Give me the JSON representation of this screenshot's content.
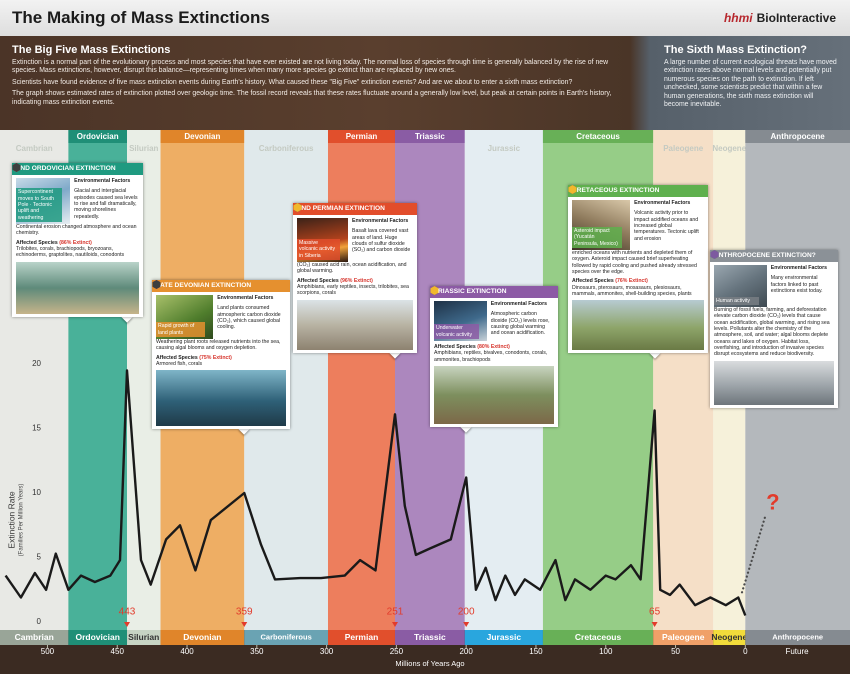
{
  "chart_data": {
    "type": "line",
    "title": "The Making of Mass Extinctions",
    "brand_hhmi": "hhmi",
    "brand_name": "BioInteractive",
    "intro": {
      "heading": "The Big Five Mass Extinctions",
      "paragraphs": [
        "Extinction is a normal part of the evolutionary process and most species that have ever existed are not living today. The normal loss of species through time is generally balanced by the rise of new species. Mass extinctions, however, disrupt this balance—representing times when many more species go extinct than are replaced by new ones.",
        "Scientists have found evidence of five mass extinction events during Earth's history. What caused these \"Big Five\" extinction events? And are we about to enter a sixth mass extinction?",
        "The graph shows estimated rates of extinction plotted over geologic time. The fossil record reveals that these rates fluctuate around a generally low level, but peak at certain points in Earth's history, indicating mass extinction events."
      ]
    },
    "sixth": {
      "heading": "The Sixth Mass Extinction?",
      "text": "A large number of current ecological threats have moved extinction rates above normal levels and potentially put numerous species on the path to extinction. If left unchecked, some scientists predict that within a few human generations, the sixth mass extinction will become inevitable."
    },
    "y_label": "Extinction Rate",
    "y_sublabel": "(Families Per Million Years)",
    "x_label": "Millions of Years Ago",
    "future_label": "Future",
    "xlim": [
      534,
      -75
    ],
    "ylim": [
      0,
      20
    ],
    "xticks": [
      500,
      450,
      400,
      350,
      300,
      250,
      200,
      150,
      100,
      50,
      0
    ],
    "yticks": [
      0,
      5,
      10,
      15,
      20
    ],
    "grid": false,
    "line_color": "#1a1a1a",
    "x": [
      530,
      519,
      509,
      501,
      494,
      485,
      476,
      466,
      455,
      448,
      443,
      433,
      426,
      415,
      405,
      394,
      383,
      359,
      347,
      337,
      319,
      304,
      287,
      276,
      265,
      251,
      244,
      236,
      226,
      211,
      200,
      193,
      186,
      179,
      172,
      165,
      158,
      147,
      136,
      129,
      122,
      111,
      100,
      93,
      82,
      75,
      65,
      61,
      54,
      47,
      36,
      25,
      14,
      5,
      0
    ],
    "values": [
      3.6,
      1.9,
      3.8,
      2.5,
      5.3,
      2.5,
      3.6,
      3.1,
      3.6,
      4.8,
      19.5,
      4.8,
      2.9,
      6.4,
      7.5,
      4.0,
      7.9,
      10,
      6,
      3.3,
      3.4,
      3.4,
      3.6,
      4.8,
      4.0,
      16.1,
      9,
      5.2,
      5.7,
      6.4,
      11.2,
      2.5,
      4.2,
      1.7,
      3.6,
      2.1,
      3.3,
      2.5,
      4.8,
      1.7,
      3.3,
      2.5,
      3.6,
      3.3,
      4.4,
      3.3,
      16.4,
      2.5,
      2.1,
      2.9,
      1.3,
      1.9,
      1.3,
      1.9,
      0.5
    ],
    "projection": {
      "color": "#4a4a4a",
      "x": [
        2.4,
        -14
      ],
      "values": [
        2.3,
        8.1
      ],
      "mark": "?",
      "mark_color": "#e23b2b"
    },
    "extinction_markers": [
      443,
      359,
      251,
      200,
      65
    ],
    "marker_color": "#e23b2b",
    "periods": [
      {
        "name": "Cambrian",
        "start": 541,
        "end": 485,
        "color": "#e6e8e3",
        "strip_color": "#99a598"
      },
      {
        "name": "Ordovician",
        "start": 485,
        "end": 443,
        "color": "#2ba68a",
        "strip_color": "#1f8f77"
      },
      {
        "name": "Silurian",
        "start": 443,
        "end": 419,
        "color": "#e7ede4",
        "strip_color": "#c6d3c3"
      },
      {
        "name": "Devonian",
        "start": 419,
        "end": 359,
        "color": "#eda24b",
        "strip_color": "#e0852a"
      },
      {
        "name": "Carboniferous",
        "start": 359,
        "end": 299,
        "color": "#dde7ea",
        "strip_color": "#6aa3b3"
      },
      {
        "name": "Permian",
        "start": 299,
        "end": 251,
        "color": "#ec6a43",
        "strip_color": "#e14f2c"
      },
      {
        "name": "Triassic",
        "start": 251,
        "end": 201,
        "color": "#a074b5",
        "strip_color": "#8a5ca4"
      },
      {
        "name": "Jurassic",
        "start": 201,
        "end": 145,
        "color": "#e2ecf2",
        "strip_color": "#29a6de"
      },
      {
        "name": "Cretaceous",
        "start": 145,
        "end": 66,
        "color": "#86c774",
        "strip_color": "#68b057"
      },
      {
        "name": "Paleogene",
        "start": 66,
        "end": 23,
        "color": "#f6dcc0",
        "strip_color": "#f0a068"
      },
      {
        "name": "Neogene",
        "start": 23,
        "end": 0,
        "color": "#f7f1d6",
        "strip_color": "#f2dc3b"
      },
      {
        "name": "Anthropocene",
        "start": 0,
        "end": -75,
        "color": "#a9aeb3",
        "strip_color": "#858b91"
      }
    ],
    "environmental_label": "Environmental Factors",
    "events": [
      {
        "title": "END ORDOVICIAN EXTINCTION",
        "color": "#1f9a80",
        "caption": "Supercontinent moves to South Pole · Tectonic uplift and weathering",
        "factors": "Glacial and interglacial episodes caused sea levels to rise and fall dramatically, moving shorelines repeatedly.",
        "factors_more": "Continental erosion changed atmosphere and ocean chemistry.",
        "affected": "Affected Species",
        "extinct": "(86% Extinct)",
        "species": "Trilobites, corals, brachiopods, bryozoans, echinoderms, graptolites, nautiloids, conodonts"
      },
      {
        "title": "LATE DEVONIAN EXTINCTION",
        "color": "#e5902f",
        "caption": "Rapid growth of land plants",
        "factors": "Land plants consumed atmospheric carbon dioxide (CO₂), which caused global cooling.",
        "factors_more": "Weathering plant roots released nutrients into the sea, causing algal blooms and oxygen depletion.",
        "affected": "Affected Species",
        "extinct": "(75% Extinct)",
        "species": "Armored fish, corals"
      },
      {
        "title": "END PERMIAN EXTINCTION",
        "color": "#e24d2b",
        "caption": "Massive volcanic activity in Siberia",
        "factors": "Basalt lava covered vast areas of land. Huge clouds of sulfur dioxide (SO₂) and carbon dioxide",
        "factors_more": "(CO₂) caused acid rain, ocean acidification, and global warming.",
        "affected": "Affected Species",
        "extinct": "(96% Extinct)",
        "species": "Amphibians, early reptiles, insects, trilobites, sea scorpions, corals"
      },
      {
        "title": "TRIASSIC EXTINCTION",
        "color": "#8c5aa5",
        "caption": "Underwater volcanic activity",
        "factors": "Atmospheric carbon dioxide (CO₂) levels rose, causing global warming and ocean acidification.",
        "affected": "Affected Species",
        "extinct": "(80% Extinct)",
        "species": "Amphibians, reptiles, bivalves, conodonts, corals, ammonites, brachiopods"
      },
      {
        "title": "CRETACEOUS EXTINCTION",
        "color": "#5fb04e",
        "caption": "Asteroid impact (Yucatán Peninsula, Mexico)",
        "factors": "Volcanic activity prior to impact acidified oceans and increased global temperatures. Tectonic uplift and erosion",
        "factors_more": "enriched oceans with nutrients and depleted them of oxygen. Asteroid impact caused brief superheating followed by rapid cooling and pushed already stressed species over the edge.",
        "affected": "Affected Species",
        "extinct": "(76% Extinct)",
        "species": "Dinosaurs, pterosaurs, mosasaurs, plesiosaurs, mammals, ammonites, shell-building species, plants"
      },
      {
        "title": "ANTHROPOCENE EXTINCTION?",
        "color": "#8b9197",
        "caption": "Human activity",
        "factors": "Many environmental factors linked to past extinctions exist today.",
        "factors_more": "Burning of fossil fuels, farming, and deforestation elevate carbon dioxide (CO₂) levels that cause ocean acidification, global warming, and rising sea levels. Pollutants alter the chemistry of the atmosphere, soil, and water; algal blooms deplete oceans and lakes of oxygen. Habitat loss, overfishing, and introduction of invasive species disrupt ecosystems and reduce biodiversity."
      }
    ]
  }
}
